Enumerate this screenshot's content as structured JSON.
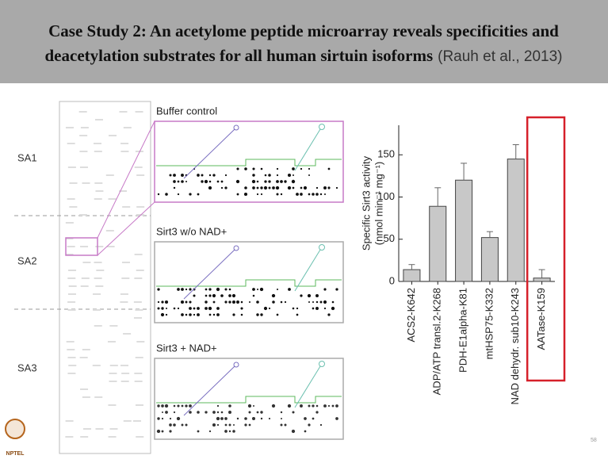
{
  "header": {
    "title": "Case Study 2: An acetylome peptide microarray reveals specificities and deacetylation substrates for all human sirtuin isoforms",
    "citation": "(Rauh et al., 2013)"
  },
  "array": {
    "sections": [
      "SA1",
      "SA2",
      "SA3"
    ],
    "panels": [
      "Buffer control",
      "Sirt3 w/o NAD+",
      "Sirt3 + NAD+"
    ]
  },
  "chart_data": {
    "type": "bar",
    "y_label": [
      "Specific Sirt3 activity",
      "(nmol min⁻¹ mg⁻¹)"
    ],
    "categories": [
      "ACS2-K642",
      "ADP/ATP transl.2-K268",
      "PDH-E1alpha-K81",
      "mtHSP75-K332",
      "NAD dehydr. sub10-K243",
      "AATase-K159"
    ],
    "values": [
      14,
      89,
      120,
      52,
      145,
      4
    ],
    "errors": [
      6,
      22,
      20,
      7,
      17,
      10
    ],
    "color": "#c8c8c8",
    "ylim": [
      0,
      185
    ],
    "yticks": [
      0,
      50,
      100,
      150
    ],
    "highlight": 5,
    "highlight_color": "#d6202a"
  },
  "footer": {
    "logo": "NPTEL",
    "page": "58"
  }
}
